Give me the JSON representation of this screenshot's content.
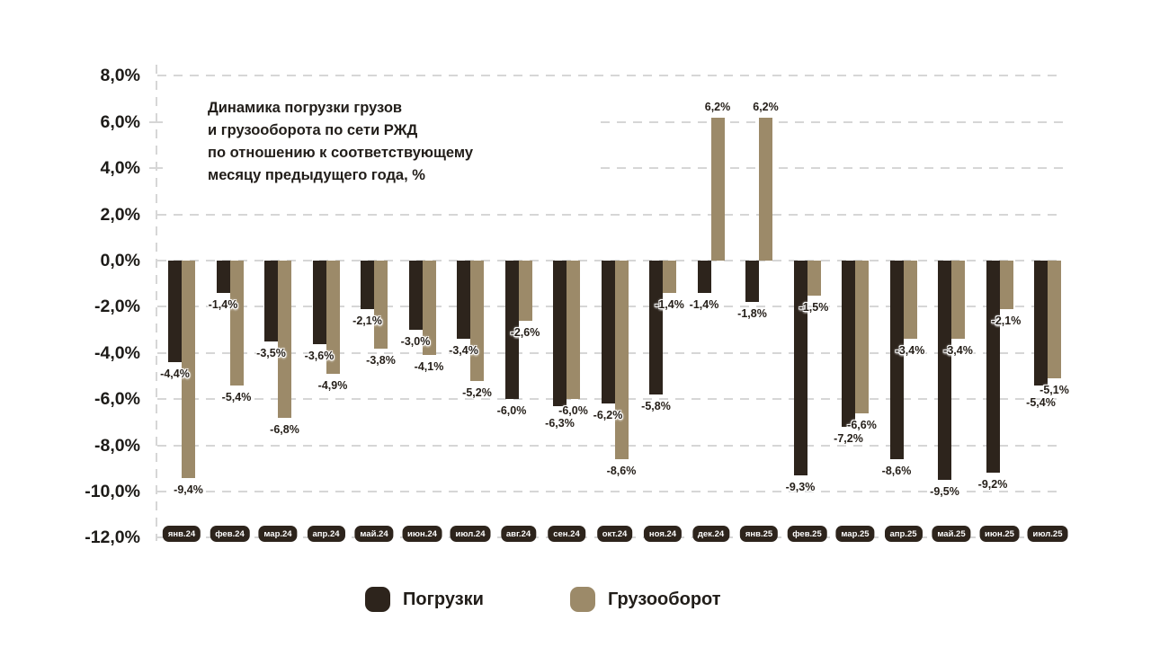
{
  "title_lines": [
    "Динамика погрузки грузов",
    "и грузооборота по сети РЖД",
    "по отношению к соответствующему",
    "месяцу предыдущего года, %"
  ],
  "colors": {
    "pogruzki": "#2d241c",
    "gruzooborot": "#9c8a69",
    "grid": "#d6d6d6",
    "badge_text": "#ffffff",
    "background": "#ffffff"
  },
  "y_axis": {
    "tick_labels": [
      "8,0%",
      "6,0%",
      "4,0%",
      "2,0%",
      "0,0%",
      "-2,0%",
      "-4,0%",
      "-6,0%",
      "-8,0%",
      "-10,0%",
      "-12,0%"
    ],
    "tick_values": [
      8,
      6,
      4,
      2,
      0,
      -2,
      -4,
      -6,
      -8,
      -10,
      -12
    ]
  },
  "legend": {
    "items": [
      {
        "label": "Погрузки",
        "color": "#2d241c"
      },
      {
        "label": "Грузооборот",
        "color": "#9c8a69"
      }
    ]
  },
  "chart_data": {
    "type": "bar",
    "title": "Динамика погрузки грузов и грузооборота по сети РЖД по отношению к соответствующему месяцу предыдущего года, %",
    "categories": [
      "янв.24",
      "фев.24",
      "мар.24",
      "апр.24",
      "май.24",
      "июн.24",
      "июл.24",
      "авг.24",
      "сен.24",
      "окт.24",
      "ноя.24",
      "дек.24",
      "янв.25",
      "фев.25",
      "мар.25",
      "апр.25",
      "май.25",
      "июн.25",
      "июл.25"
    ],
    "series": [
      {
        "name": "Погрузки",
        "values": [
          -4.4,
          -1.4,
          -3.5,
          -3.6,
          -2.1,
          -3.0,
          -3.4,
          -6.0,
          -6.3,
          -6.2,
          -5.8,
          -1.4,
          -1.8,
          -9.3,
          -7.2,
          -8.6,
          -9.5,
          -9.2,
          -5.4
        ],
        "labels": [
          "-4,4%",
          "-1,4%",
          "-3,5%",
          "-3,6%",
          "-2,1%",
          "-3,0%",
          "-3,4%",
          "-6,0%",
          "-6,3%",
          "-6,2%",
          "-5,8%",
          "-1,4%",
          "-1,8%",
          "-9,3%",
          "-7,2%",
          "-8,6%",
          "-9,5%",
          "-9,2%",
          "-5,4%"
        ]
      },
      {
        "name": "Грузооборот",
        "values": [
          -9.4,
          -5.4,
          -6.8,
          -4.9,
          -3.8,
          -4.1,
          -5.2,
          -2.6,
          -6.0,
          -8.6,
          -1.4,
          6.2,
          6.2,
          -1.5,
          -6.6,
          -3.4,
          -3.4,
          -2.1,
          -5.1
        ],
        "labels": [
          "-9,4%",
          "-5,4%",
          "-6,8%",
          "-4,9%",
          "-3,8%",
          "-4,1%",
          "-5,2%",
          "-2,6%",
          "-6,0%",
          "-8,6%",
          "-1,4%",
          "6,2%",
          "6,2%",
          "-1,5%",
          "-6,6%",
          "-3,4%",
          "-3,4%",
          "-2,1%",
          "-5,1%"
        ]
      }
    ],
    "ylim": [
      -12,
      8
    ],
    "grid": true,
    "legend_position": "bottom"
  }
}
